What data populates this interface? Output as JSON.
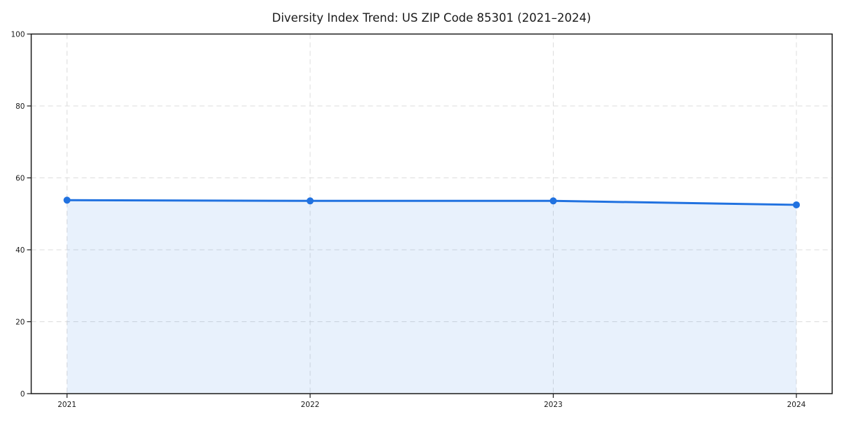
{
  "page": {
    "background": "#ffffff"
  },
  "chart_data": {
    "type": "area",
    "title": "Diversity Index Trend: US ZIP Code 85301 (2021–2024)",
    "x": [
      2021,
      2022,
      2023,
      2024
    ],
    "series": [
      {
        "values": [
          53.8,
          53.6,
          53.6,
          52.5
        ]
      }
    ],
    "xlabel": "",
    "ylabel": "",
    "xtick_labels": [
      "2021",
      "2022",
      "2023",
      "2024"
    ],
    "ytick_labels": [
      "0",
      "20",
      "40",
      "60",
      "80",
      "100"
    ],
    "yticks": [
      0,
      20,
      40,
      60,
      80,
      100
    ],
    "ylim": [
      0,
      100
    ],
    "grid": "dashed, horizontal and vertical",
    "legend": "none",
    "marker": "circle",
    "colors": {
      "line": "#2172e0",
      "marker": "#2172e0",
      "fill": "#2172e0",
      "fill_opacity": 0.1,
      "grid": "#dcdcdc",
      "spine": "#1a1a1a",
      "text": "#1a1a1a"
    }
  }
}
